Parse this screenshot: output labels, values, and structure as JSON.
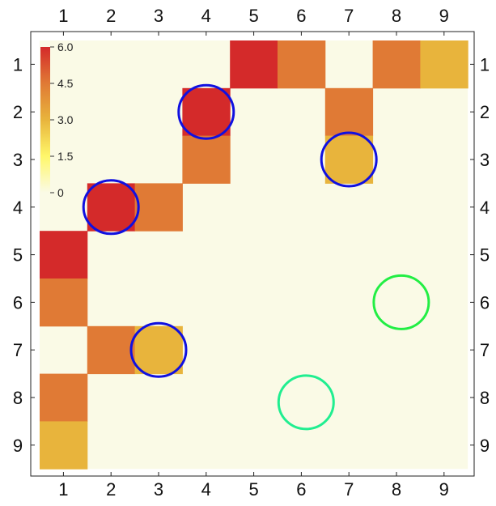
{
  "chart_data": {
    "type": "heatmap",
    "title": "",
    "xlabel": "",
    "ylabel": "",
    "x_categories": [
      "1",
      "2",
      "3",
      "4",
      "5",
      "6",
      "7",
      "8",
      "9"
    ],
    "y_categories": [
      "1",
      "2",
      "3",
      "4",
      "5",
      "6",
      "7",
      "8",
      "9"
    ],
    "matrix": [
      [
        0,
        0,
        0,
        0,
        6,
        5,
        0,
        5,
        4
      ],
      [
        0,
        0,
        0,
        6,
        0,
        0,
        5,
        0,
        0
      ],
      [
        0,
        0,
        0,
        5,
        0,
        0,
        4,
        0,
        0
      ],
      [
        0,
        6,
        5,
        0,
        0,
        0,
        0,
        0,
        0
      ],
      [
        6,
        0,
        0,
        0,
        0,
        0,
        0,
        0,
        0
      ],
      [
        5,
        0,
        0,
        0,
        0,
        0,
        0,
        0,
        0
      ],
      [
        0,
        5,
        4,
        0,
        0,
        0,
        0,
        0,
        0
      ],
      [
        5,
        0,
        0,
        0,
        0,
        0,
        0,
        0,
        0
      ],
      [
        4,
        0,
        0,
        0,
        0,
        0,
        0,
        0,
        0
      ]
    ],
    "colorbar": {
      "range": [
        0,
        6.0
      ],
      "ticks": [
        0,
        1.5,
        3.0,
        4.5,
        6.0
      ],
      "tick_labels": [
        "0",
        "1.5",
        "3.0",
        "4.5",
        "6.0"
      ],
      "placement": "top-left"
    },
    "colors": {
      "zero": "#fafae6",
      "low": "#fff76a",
      "mid": "#e8b43c",
      "high": "#e07a35",
      "max": "#d42a2a",
      "circle_blue": "#1010e0",
      "circle_green": "#22ee44",
      "circle_teal": "#20ee90"
    },
    "circles": [
      {
        "row": 2,
        "col": 4,
        "color": "circle_blue"
      },
      {
        "row": 3,
        "col": 7,
        "color": "circle_blue"
      },
      {
        "row": 4,
        "col": 2,
        "color": "circle_blue"
      },
      {
        "row": 7,
        "col": 3,
        "color": "circle_blue"
      },
      {
        "row": 6,
        "col": 8.1,
        "color": "circle_green"
      },
      {
        "row": 8.1,
        "col": 6.1,
        "color": "circle_teal"
      }
    ],
    "grid": false
  }
}
